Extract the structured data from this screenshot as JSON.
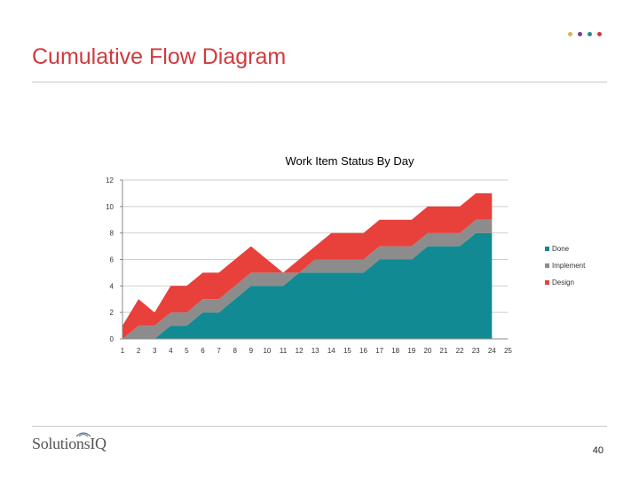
{
  "slide": {
    "title": "Cumulative Flow Diagram",
    "page_number": "40",
    "logo_text": "SolutionsIQ",
    "accent_dots": [
      "#d9b84a",
      "#7a3f7d",
      "#2a8a8e",
      "#d0393e"
    ]
  },
  "chart_data": {
    "type": "area",
    "stacked": true,
    "title": "Work Item Status By Day",
    "xlabel": "",
    "ylabel": "",
    "categories": [
      1,
      2,
      3,
      4,
      5,
      6,
      7,
      8,
      9,
      10,
      11,
      12,
      13,
      14,
      15,
      16,
      17,
      18,
      19,
      20,
      21,
      22,
      23,
      24,
      25
    ],
    "ylim": [
      0,
      12
    ],
    "yticks": [
      0,
      2,
      4,
      6,
      8,
      10,
      12
    ],
    "grid": true,
    "legend_position": "right",
    "series": [
      {
        "name": "Done",
        "color": "#128a93",
        "values": [
          0,
          0,
          0,
          1,
          1,
          2,
          2,
          3,
          4,
          4,
          4,
          5,
          5,
          5,
          5,
          5,
          6,
          6,
          6,
          7,
          7,
          7,
          8,
          8,
          null
        ]
      },
      {
        "name": "Implement",
        "color": "#8c8c8c",
        "values": [
          0,
          1,
          1,
          1,
          1,
          1,
          1,
          1,
          1,
          1,
          1,
          0,
          1,
          1,
          1,
          1,
          1,
          1,
          1,
          1,
          1,
          1,
          1,
          1,
          null
        ]
      },
      {
        "name": "Design",
        "color": "#e8403a",
        "values": [
          1,
          2,
          1,
          2,
          2,
          2,
          2,
          2,
          2,
          1,
          0,
          1,
          1,
          2,
          2,
          2,
          2,
          2,
          2,
          2,
          2,
          2,
          2,
          2,
          null
        ]
      }
    ]
  }
}
